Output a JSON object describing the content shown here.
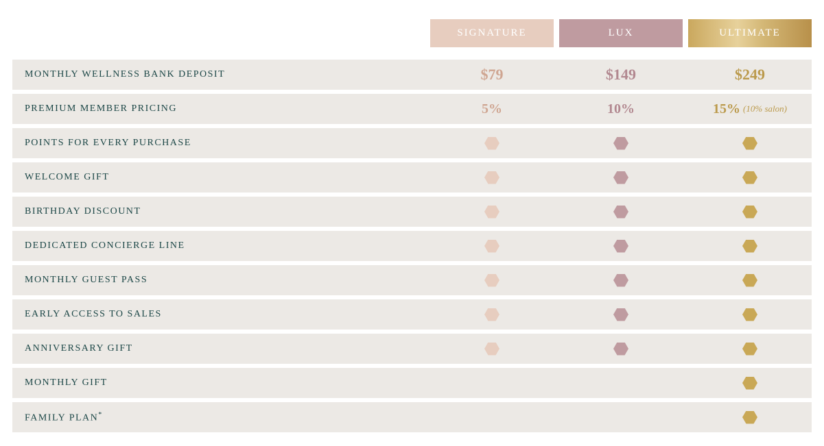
{
  "colors": {
    "row_bg": "#ece9e5",
    "label_text": "#1b4646",
    "signature": {
      "header_bg": "#e7cdbf",
      "header_text": "#ffffff",
      "value_text": "#cfa591",
      "hex": "#e7cdbf"
    },
    "lux": {
      "header_bg": "#bf9ba0",
      "header_text": "#ffffff",
      "value_text": "#b28890",
      "hex": "#bf9ba0"
    },
    "ultimate": {
      "header_bg": "linear-gradient(90deg,#caa85e 0%,#e7d19b 40%,#d4b877 60%,#b8904a 100%)",
      "header_text": "#ffffff",
      "value_text": "#bb9a4c",
      "hex": "#c9a856"
    }
  },
  "tiers": [
    {
      "key": "signature",
      "label": "SIGNATURE"
    },
    {
      "key": "lux",
      "label": "LUX"
    },
    {
      "key": "ultimate",
      "label": "ULTIMATE"
    }
  ],
  "rows": [
    {
      "label": "MONTHLY WELLNESS BANK DEPOSIT",
      "type": "price",
      "values": {
        "signature": "$79",
        "lux": "$149",
        "ultimate": "$249"
      }
    },
    {
      "label": "PREMIUM MEMBER PRICING",
      "type": "percent",
      "values": {
        "signature": "5%",
        "lux": "10%",
        "ultimate": "15%"
      },
      "ultimate_note": "(10% salon)"
    },
    {
      "label": "POINTS FOR EVERY PURCHASE",
      "type": "hex",
      "values": {
        "signature": true,
        "lux": true,
        "ultimate": true
      }
    },
    {
      "label": "WELCOME GIFT",
      "type": "hex",
      "values": {
        "signature": true,
        "lux": true,
        "ultimate": true
      }
    },
    {
      "label": "BIRTHDAY DISCOUNT",
      "type": "hex",
      "values": {
        "signature": true,
        "lux": true,
        "ultimate": true
      }
    },
    {
      "label": "DEDICATED CONCIERGE LINE",
      "type": "hex",
      "values": {
        "signature": true,
        "lux": true,
        "ultimate": true
      }
    },
    {
      "label": "MONTHLY GUEST PASS",
      "type": "hex",
      "values": {
        "signature": true,
        "lux": true,
        "ultimate": true
      }
    },
    {
      "label": "EARLY ACCESS TO SALES",
      "type": "hex",
      "values": {
        "signature": true,
        "lux": true,
        "ultimate": true
      }
    },
    {
      "label": "ANNIVERSARY GIFT",
      "type": "hex",
      "values": {
        "signature": true,
        "lux": true,
        "ultimate": true
      }
    },
    {
      "label": "MONTHLY GIFT",
      "type": "hex",
      "values": {
        "signature": false,
        "lux": false,
        "ultimate": true
      }
    },
    {
      "label": "FAMILY PLAN",
      "sup": "*",
      "type": "hex",
      "values": {
        "signature": false,
        "lux": false,
        "ultimate": true
      }
    }
  ]
}
